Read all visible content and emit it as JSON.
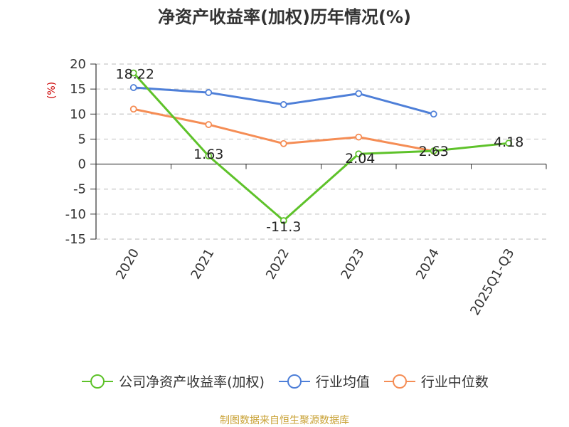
{
  "chart_data": {
    "type": "line",
    "title": "净资产收益率(加权)历年情况(%)",
    "ylabel": "(%)",
    "xlabel": "",
    "categories": [
      "2020",
      "2021",
      "2022",
      "2023",
      "2024",
      "2025Q1-Q3"
    ],
    "ylim": [
      -15,
      20
    ],
    "yticks": [
      20,
      15,
      10,
      5,
      0,
      -5,
      -10,
      -15
    ],
    "grid": true,
    "legend_position": "bottom",
    "series": [
      {
        "name": "公司净资产收益率(加权)",
        "color": "#5ec22a",
        "values": [
          18.22,
          1.63,
          -11.3,
          2.04,
          2.63,
          4.18
        ],
        "labels": [
          "18.22",
          "1.63",
          "-11.3",
          "2.04",
          "2.63",
          "4.18"
        ]
      },
      {
        "name": "行业均值",
        "color": "#4e7fd8",
        "values": [
          15.3,
          14.3,
          11.9,
          14.1,
          10.0,
          null
        ]
      },
      {
        "name": "行业中位数",
        "color": "#f58d55",
        "values": [
          11.0,
          7.9,
          4.1,
          5.4,
          2.6,
          null
        ]
      }
    ]
  },
  "source": "制图数据来自恒生聚源数据库"
}
